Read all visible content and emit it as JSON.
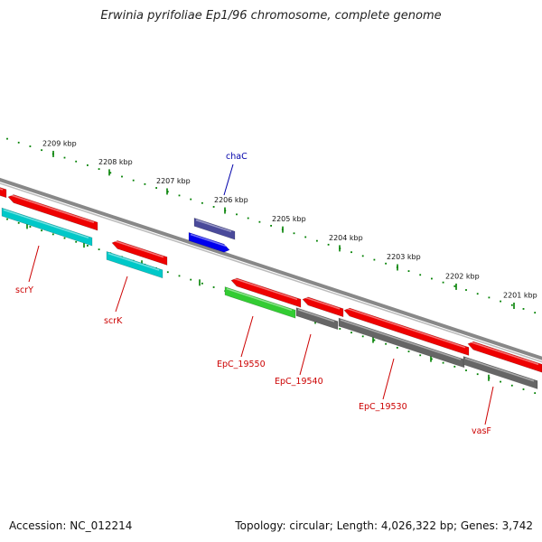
{
  "title": "Erwinia pyrifoliae Ep1/96 chromosome, complete genome",
  "kbp_labels": [
    {
      "text": "2209 kbp",
      "kbp": 2209
    },
    {
      "text": "2208 kbp",
      "kbp": 2208
    },
    {
      "text": "2207 kbp",
      "kbp": 2207
    },
    {
      "text": "2206 kbp",
      "kbp": 2206
    },
    {
      "text": "2205 kbp",
      "kbp": 2205
    },
    {
      "text": "2204 kbp",
      "kbp": 2204
    },
    {
      "text": "2203 kbp",
      "kbp": 2203
    },
    {
      "text": "2202 kbp",
      "kbp": 2202
    },
    {
      "text": "2201 kbp",
      "kbp": 2201
    }
  ],
  "gene_labels": [
    {
      "name": "chaC",
      "color": "#0000aa"
    },
    {
      "name": "scrY",
      "color": "#cc0000"
    },
    {
      "name": "scrK",
      "color": "#cc0000"
    },
    {
      "name": "EpC_19550",
      "color": "#cc0000"
    },
    {
      "name": "EpC_19540",
      "color": "#cc0000"
    },
    {
      "name": "EpC_19530",
      "color": "#cc0000"
    },
    {
      "name": "vasF",
      "color": "#cc0000"
    }
  ],
  "colors": {
    "forward_gene": "#ee0000",
    "cyan_gene": "#00c8c8",
    "purple_gene": "#4a4a9a",
    "blue_gene": "#0000ee",
    "green_gene": "#33cc33",
    "gray_gene": "#666666",
    "tick": "#008000",
    "backbone": "#888888"
  },
  "footer": {
    "accession": "Accession: NC_012214",
    "summary": "Topology: circular; Length: 4,026,322 bp; Genes: 3,742"
  }
}
